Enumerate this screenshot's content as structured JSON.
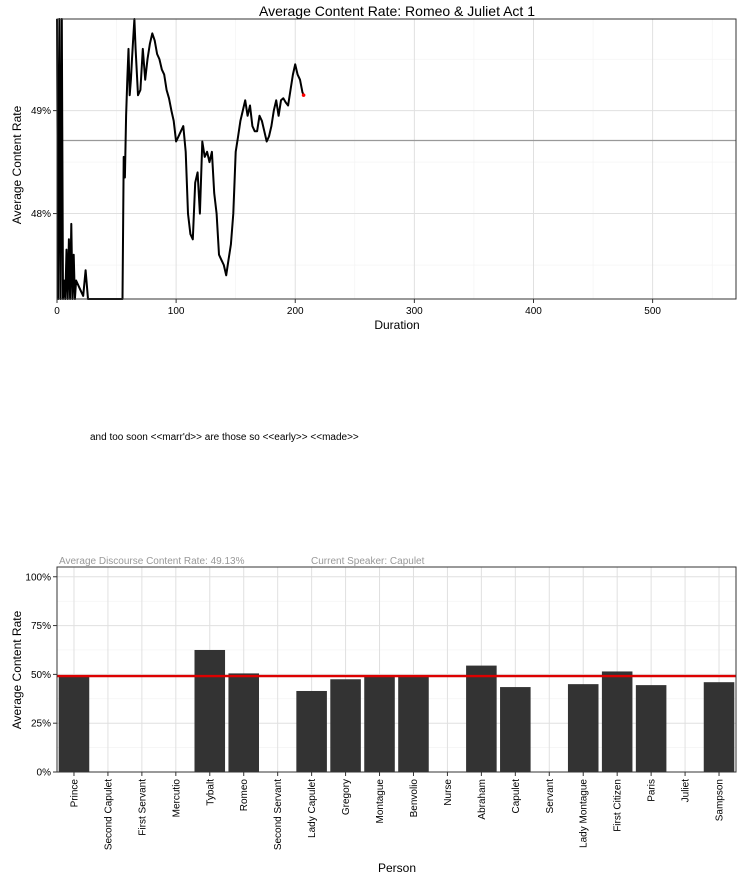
{
  "caption": "and too soon <<marr'd>> are those so <<early>> <<made>>",
  "chart_data": [
    {
      "type": "line",
      "title": "Average Content Rate: Romeo & Juliet Act 1",
      "xlabel": "Duration",
      "ylabel": "Average Content Rate",
      "xlim": [
        0,
        570
      ],
      "ylim": [
        0.4717,
        0.4989
      ],
      "xticks": [
        0,
        100,
        200,
        300,
        400,
        500
      ],
      "xtick_labels": [
        "0",
        "100",
        "200",
        "300",
        "400",
        "500"
      ],
      "yticks": [
        0.48,
        0.49
      ],
      "ytick_labels": [
        "48%",
        "49%"
      ],
      "reference_y": 0.4871,
      "grid": true,
      "legend": "none",
      "colors": {
        "line": "#000000",
        "endpoint": "#ff0000",
        "reference": "#999999"
      },
      "x": [
        0,
        1,
        2,
        3,
        4,
        5,
        6,
        7,
        8,
        9,
        10,
        11,
        12,
        13,
        14,
        15,
        16,
        20,
        22,
        24,
        26,
        55,
        56,
        57,
        58,
        59,
        60,
        61,
        62,
        63,
        64,
        65,
        66,
        68,
        70,
        72,
        74,
        76,
        78,
        80,
        82,
        84,
        86,
        88,
        90,
        92,
        94,
        96,
        98,
        100,
        102,
        104,
        106,
        108,
        110,
        112,
        114,
        116,
        118,
        120,
        122,
        124,
        126,
        128,
        130,
        132,
        134,
        136,
        138,
        140,
        142,
        144,
        146,
        148,
        150,
        152,
        154,
        156,
        158,
        160,
        162,
        164,
        166,
        168,
        170,
        172,
        174,
        176,
        178,
        180,
        182,
        184,
        186,
        188,
        190,
        192,
        194,
        196,
        198,
        200,
        202,
        204,
        206,
        207
      ],
      "y": [
        0.4989,
        0.4717,
        0.4989,
        0.4717,
        0.4989,
        0.4717,
        0.4735,
        0.4717,
        0.4765,
        0.4717,
        0.4775,
        0.4717,
        0.479,
        0.4717,
        0.476,
        0.4717,
        0.4735,
        0.4725,
        0.472,
        0.4745,
        0.4717,
        0.4717,
        0.4855,
        0.4835,
        0.4895,
        0.493,
        0.496,
        0.4915,
        0.493,
        0.495,
        0.497,
        0.4989,
        0.496,
        0.4915,
        0.492,
        0.496,
        0.493,
        0.495,
        0.4965,
        0.4975,
        0.4968,
        0.4955,
        0.495,
        0.494,
        0.4935,
        0.492,
        0.4912,
        0.49,
        0.489,
        0.487,
        0.4875,
        0.488,
        0.4885,
        0.486,
        0.48,
        0.478,
        0.4775,
        0.483,
        0.484,
        0.48,
        0.487,
        0.4855,
        0.486,
        0.485,
        0.486,
        0.482,
        0.48,
        0.476,
        0.4755,
        0.475,
        0.474,
        0.4755,
        0.477,
        0.48,
        0.486,
        0.4875,
        0.489,
        0.49,
        0.491,
        0.4895,
        0.4905,
        0.4885,
        0.488,
        0.488,
        0.4895,
        0.489,
        0.488,
        0.487,
        0.4875,
        0.4885,
        0.49,
        0.491,
        0.4895,
        0.491,
        0.4912,
        0.4908,
        0.4905,
        0.492,
        0.4935,
        0.4945,
        0.4935,
        0.493,
        0.4918,
        0.4915
      ]
    },
    {
      "type": "bar",
      "header_left": "Average Discourse Content Rate:  49.13%",
      "header_right": "Current Speaker:   Capulet",
      "xlabel": "Person",
      "ylabel": "Average Content Rate",
      "ylim": [
        0,
        1.05
      ],
      "yticks": [
        0,
        0.25,
        0.5,
        0.75,
        1.0
      ],
      "ytick_labels": [
        "0%",
        "25%",
        "50%",
        "75%",
        "100%"
      ],
      "reference_y": 0.4913,
      "grid": true,
      "legend": "none",
      "colors": {
        "bar": "#333333",
        "reference": "#dd0000"
      },
      "categories": [
        "Prince",
        "Second Capulet",
        "First Servant",
        "Mercutio",
        "Tybalt",
        "Romeo",
        "Second Servant",
        "Lady Capulet",
        "Gregory",
        "Montague",
        "Benvolio",
        "Nurse",
        "Abraham",
        "Capulet",
        "Servant",
        "Lady Montague",
        "First Citizen",
        "Paris",
        "Juliet",
        "Sampson"
      ],
      "values": [
        0.49,
        0,
        0,
        0,
        0.625,
        0.505,
        0,
        0.415,
        0.475,
        0.49,
        0.49,
        0,
        0.545,
        0.435,
        0,
        0.45,
        0.515,
        0.445,
        0,
        0.46
      ]
    }
  ]
}
